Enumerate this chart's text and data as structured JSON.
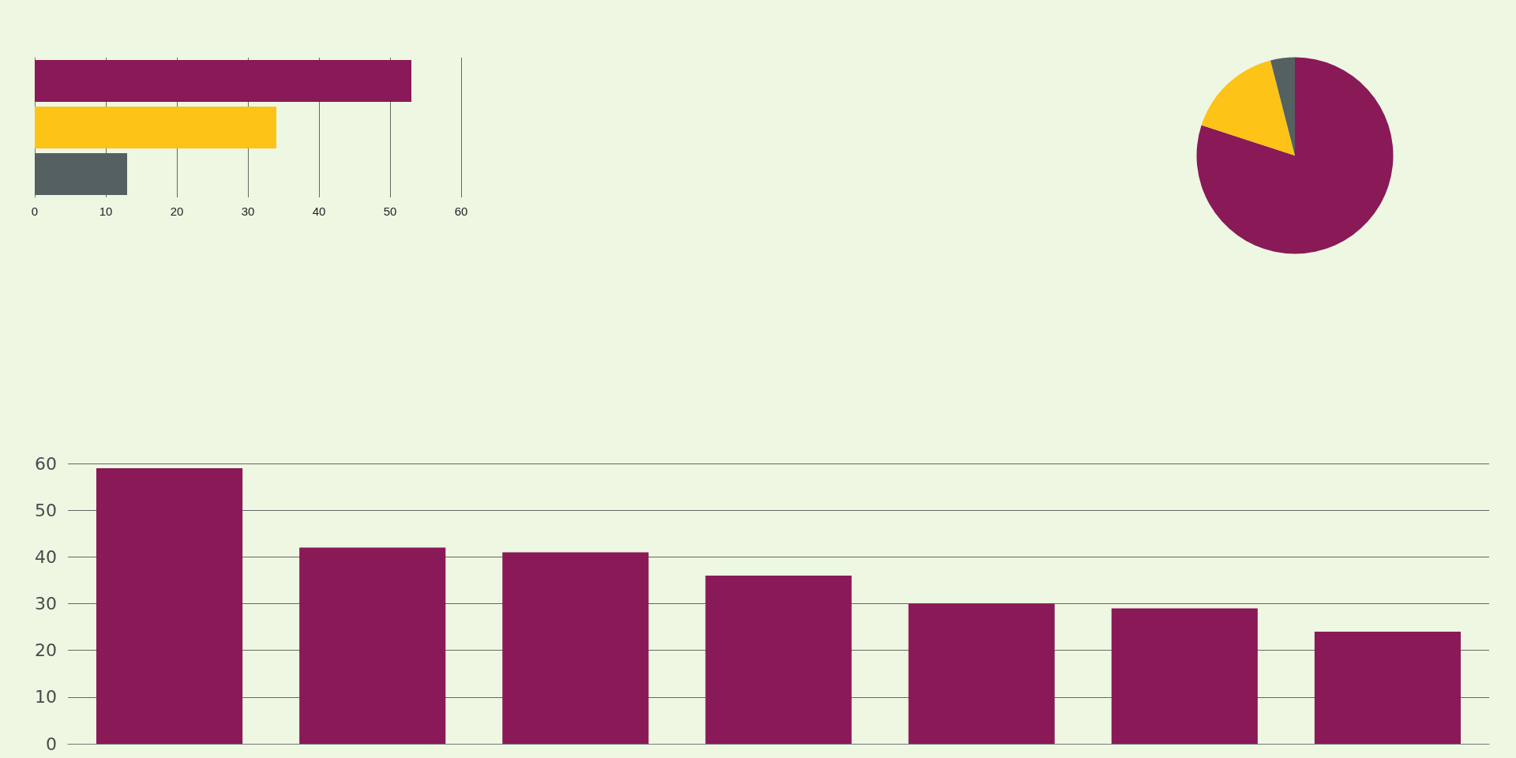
{
  "chart_data": [
    {
      "type": "bar",
      "orientation": "horizontal",
      "categories": [
        null,
        null,
        null
      ],
      "values": [
        53,
        34,
        13
      ],
      "colors": [
        "#8a1958",
        "#fdc316",
        "#556061"
      ],
      "xlim": [
        0,
        60
      ],
      "xticks": [
        0,
        10,
        20,
        30,
        40,
        50,
        60
      ],
      "grid": "x",
      "tick_labels": "x"
    },
    {
      "type": "pie",
      "categories": [
        null,
        null,
        null
      ],
      "values": [
        80,
        16,
        4
      ],
      "colors": [
        "#8a1958",
        "#fdc316",
        "#556061"
      ]
    },
    {
      "type": "bar",
      "categories": [
        null,
        null,
        null,
        null,
        null,
        null,
        null
      ],
      "values": [
        59,
        42,
        41,
        36,
        30,
        29,
        24
      ],
      "color": "#8a1958",
      "ylim": [
        0,
        60
      ],
      "yticks": [
        0,
        10,
        20,
        30,
        40,
        50,
        60
      ],
      "grid": "y",
      "tick_labels": "y"
    }
  ]
}
